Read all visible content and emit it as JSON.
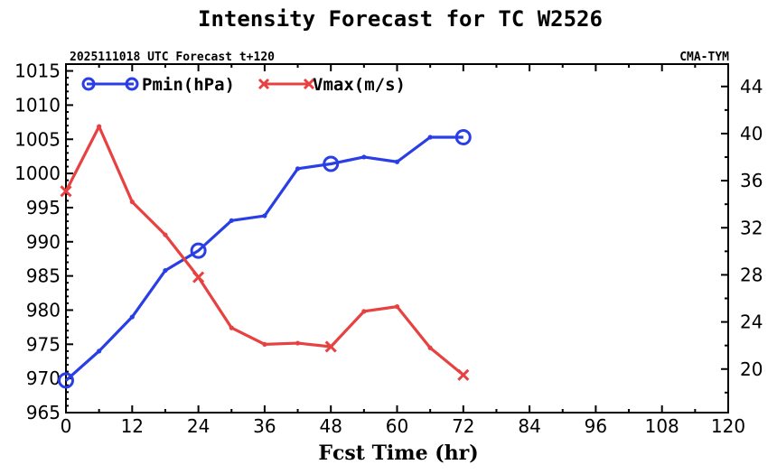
{
  "chart_data": {
    "type": "line",
    "title": "Intensity Forecast for TC W2526",
    "subtitle_left": "2025111018 UTC Forecast t+120",
    "subtitle_right": "CMA-TYM",
    "xlabel": "Fcst Time (hr)",
    "xlim": [
      0,
      120
    ],
    "xticks": [
      0,
      12,
      24,
      36,
      48,
      60,
      72,
      84,
      96,
      108,
      120
    ],
    "ylim_left": [
      965,
      1016
    ],
    "yticks_left": [
      965,
      970,
      975,
      980,
      985,
      990,
      995,
      1000,
      1005,
      1010,
      1015
    ],
    "ylim_right": [
      16.3,
      45.9
    ],
    "yticks_right": [
      20,
      24,
      28,
      32,
      36,
      40,
      44
    ],
    "legend_position": "top-left",
    "series": [
      {
        "name": "Pmin(hPa)",
        "axis": "left",
        "color": "#2a3ee6",
        "marker": "circle",
        "x": [
          0,
          6,
          12,
          18,
          24,
          30,
          36,
          42,
          48,
          54,
          60,
          66,
          72
        ],
        "y": [
          969.7,
          974,
          979,
          985.8,
          988.7,
          993.1,
          993.8,
          1000.7,
          1001.4,
          1002.4,
          1001.7,
          1005.3,
          1005.3
        ],
        "marker_x": [
          0,
          24,
          48,
          72
        ]
      },
      {
        "name": "Vmax(m/s)",
        "axis": "right",
        "color": "#e84141",
        "marker": "x",
        "x": [
          0,
          6,
          12,
          18,
          24,
          30,
          36,
          42,
          48,
          54,
          60,
          66,
          72
        ],
        "y": [
          35.1,
          40.6,
          34.2,
          31.4,
          27.8,
          23.5,
          22.1,
          22.2,
          21.9,
          24.9,
          25.3,
          21.8,
          19.5
        ],
        "marker_x": [
          0,
          24,
          48,
          72
        ]
      }
    ]
  }
}
